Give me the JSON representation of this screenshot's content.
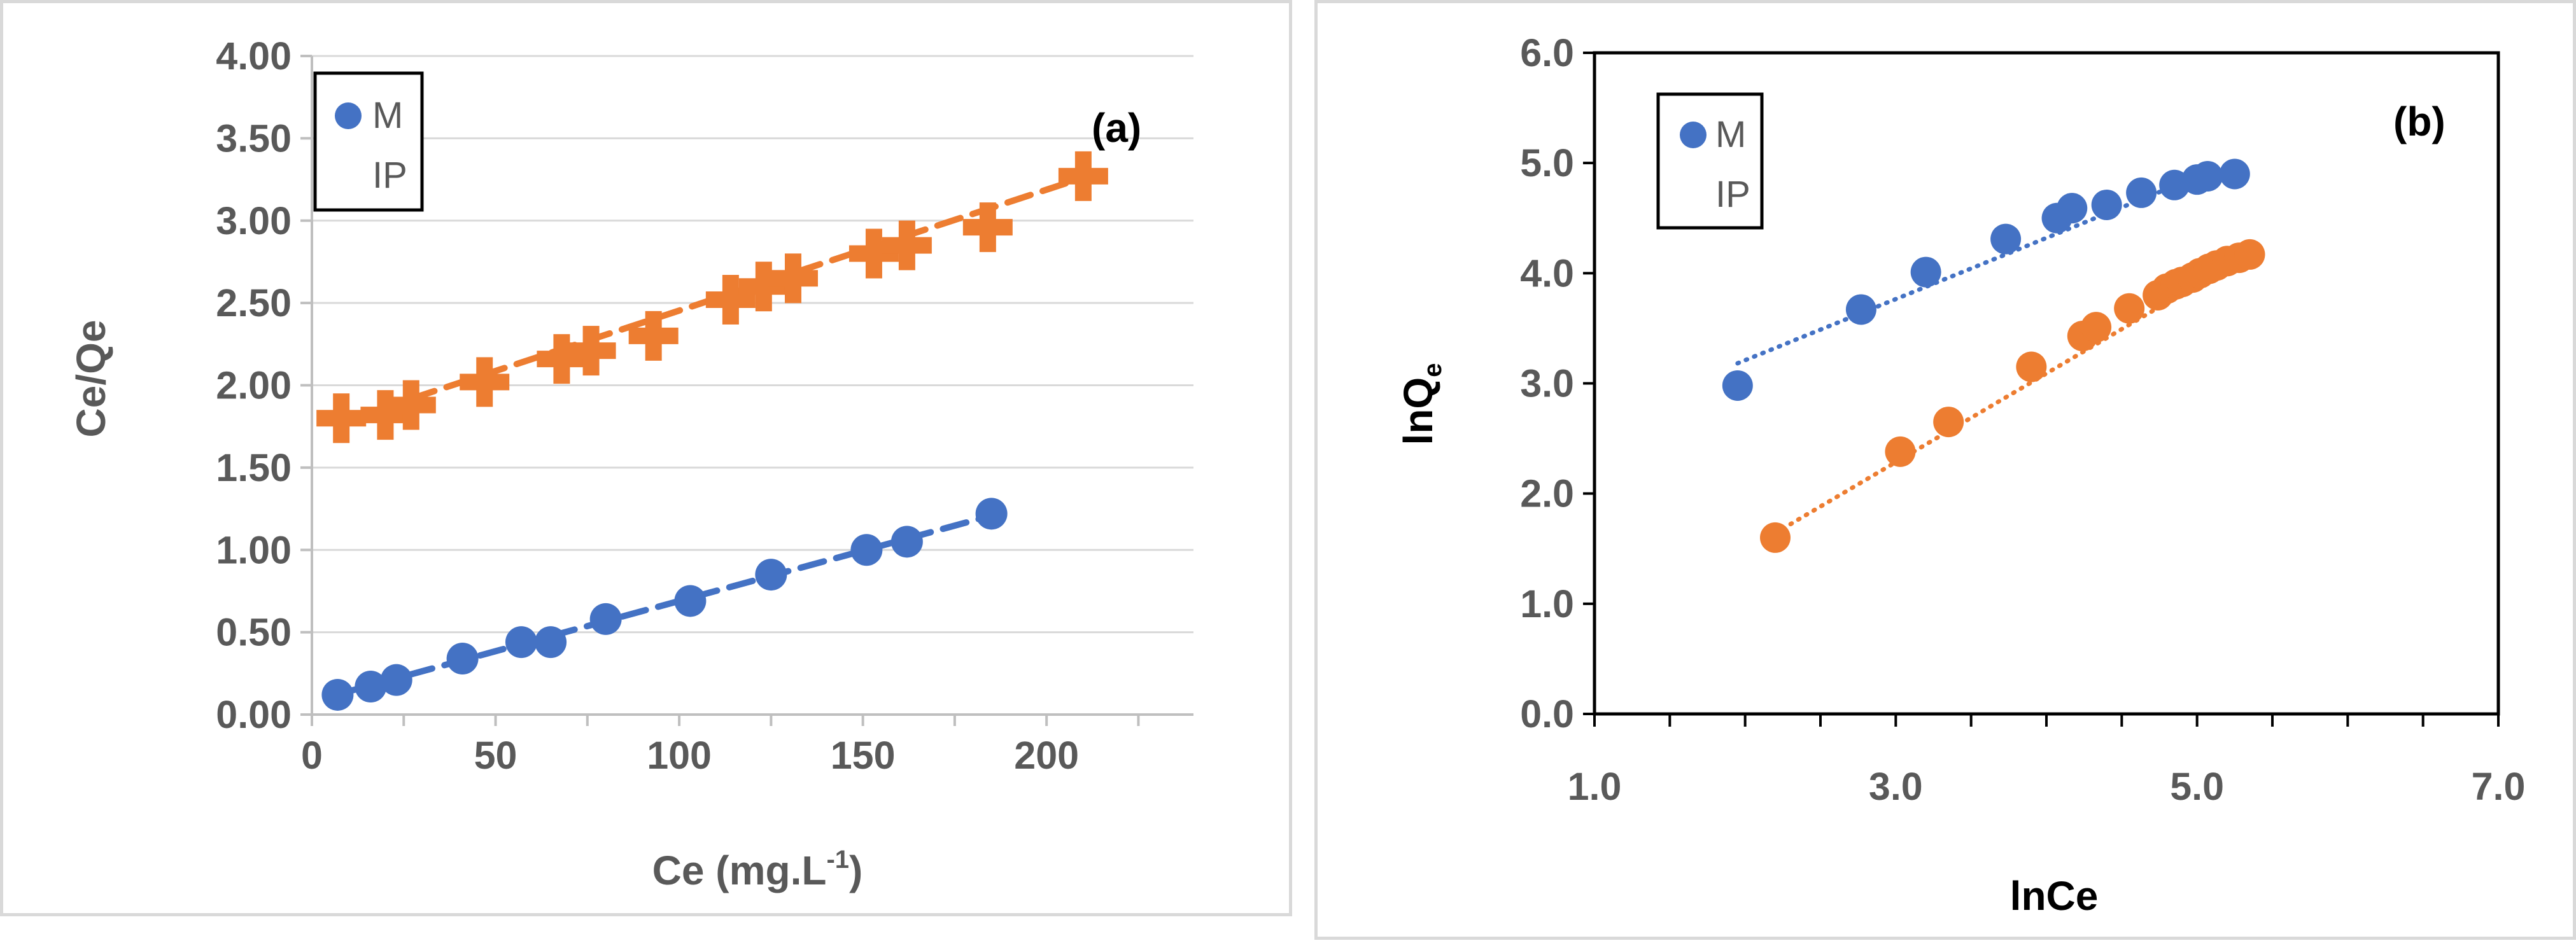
{
  "chart_data": [
    {
      "type": "scatter",
      "panel_label": "(a)",
      "title": "",
      "xlabel": "Ce (mg.L",
      "xlabel_sup": "-1",
      "xlabel_end": ")",
      "ylabel": "Ce/Qe",
      "xlim": [
        0,
        240
      ],
      "ylim": [
        0,
        4
      ],
      "xticks": [
        0,
        50,
        100,
        150,
        200
      ],
      "xtick_labels": [
        "0",
        "50",
        "100",
        "150",
        "200"
      ],
      "yticks": [
        0,
        0.5,
        1,
        1.5,
        2,
        2.5,
        3,
        3.5,
        4
      ],
      "ytick_labels": [
        "0.00",
        "0.50",
        "1.00",
        "1.50",
        "2.00",
        "2.50",
        "3.00",
        "3.50",
        "4.00"
      ],
      "legend": {
        "placement": "top-left",
        "entries": [
          "M",
          "IP"
        ]
      },
      "series": [
        {
          "name": "M",
          "color": "#4472c4",
          "marker": "circle",
          "trendline": "dashed",
          "x": [
            7,
            16,
            23,
            41,
            57,
            65,
            80,
            103,
            125,
            151,
            162,
            185
          ],
          "y": [
            0.12,
            0.17,
            0.21,
            0.34,
            0.44,
            0.44,
            0.58,
            0.69,
            0.85,
            1.0,
            1.05,
            1.22
          ],
          "fit": {
            "slope": 0.0061,
            "intercept": 0.08
          }
        },
        {
          "name": "IP",
          "color": "#ed7d31",
          "marker": "cross",
          "trendline": "dashed",
          "x": [
            8,
            20,
            27,
            47,
            68,
            76,
            93,
            114,
            123,
            131,
            153,
            162,
            184,
            210
          ],
          "y": [
            1.8,
            1.82,
            1.88,
            2.02,
            2.16,
            2.21,
            2.3,
            2.52,
            2.6,
            2.65,
            2.8,
            2.85,
            2.96,
            3.27
          ],
          "fit": {
            "slope": 0.00734,
            "intercept": 1.72
          }
        }
      ]
    },
    {
      "type": "scatter",
      "panel_label": "(b)",
      "title": "",
      "xlabel": "lnCe",
      "ylabel": "lnQ",
      "ylabel_sub": "e",
      "xlim": [
        1,
        7
      ],
      "ylim": [
        0,
        6
      ],
      "xticks": [
        1,
        3,
        5,
        7
      ],
      "xtick_labels": [
        "1.0",
        "3.0",
        "5.0",
        "7.0"
      ],
      "yticks": [
        0,
        1,
        2,
        3,
        4,
        5,
        6
      ],
      "ytick_labels": [
        "0.0",
        "1.0",
        "2.0",
        "3.0",
        "4.0",
        "5.0",
        "6.0"
      ],
      "legend": {
        "placement": "top-left",
        "entries": [
          "M",
          "IP"
        ]
      },
      "series": [
        {
          "name": "M",
          "color": "#4472c4",
          "marker": "circle",
          "trendline": "dotted",
          "x": [
            1.95,
            2.77,
            3.2,
            3.73,
            4.07,
            4.17,
            4.4,
            4.63,
            4.85,
            5.0,
            5.07,
            5.25
          ],
          "y": [
            2.98,
            3.67,
            4.01,
            4.31,
            4.5,
            4.59,
            4.62,
            4.73,
            4.8,
            4.85,
            4.88,
            4.9
          ],
          "fit": {
            "x_start": 1.95,
            "x_end": 5.27,
            "slope": 0.555,
            "intercept": 2.1
          }
        },
        {
          "name": "IP",
          "color": "#ed7d31",
          "marker": "circle",
          "trendline": "dotted",
          "x": [
            2.2,
            3.03,
            3.35,
            3.9,
            4.24,
            4.33,
            4.55,
            4.74,
            4.8,
            4.86,
            4.9,
            4.97,
            5.02,
            5.08,
            5.13,
            5.2,
            5.28,
            5.35
          ],
          "y": [
            1.6,
            2.38,
            2.65,
            3.15,
            3.43,
            3.51,
            3.68,
            3.8,
            3.86,
            3.9,
            3.92,
            3.96,
            4.0,
            4.04,
            4.07,
            4.11,
            4.14,
            4.17
          ],
          "fit": {
            "x_start": 2.2,
            "x_end": 5.35,
            "slope": 0.805,
            "intercept": -0.13
          }
        }
      ]
    }
  ]
}
